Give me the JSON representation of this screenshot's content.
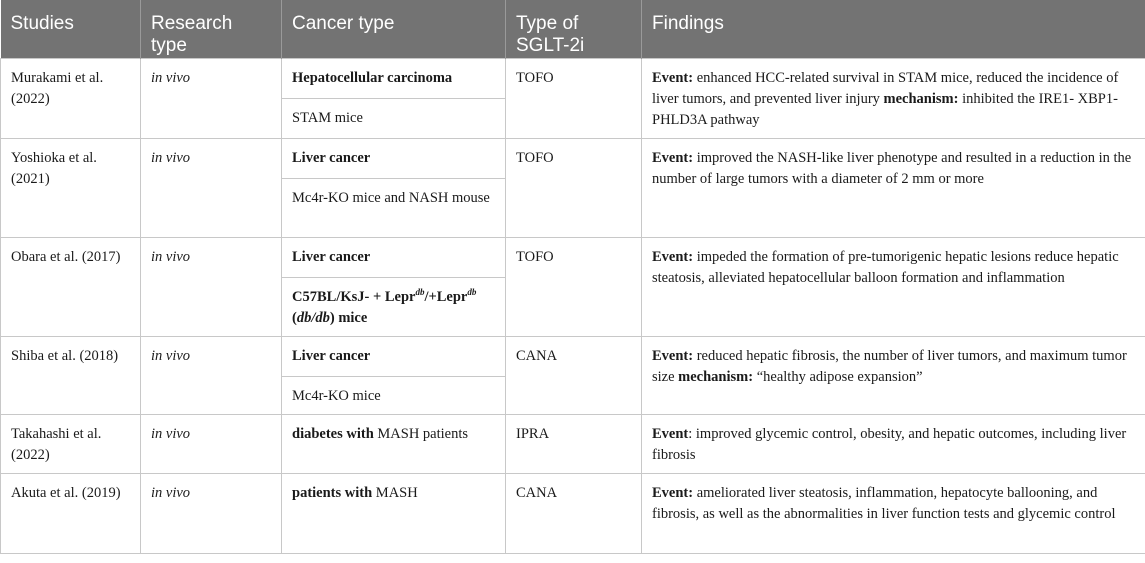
{
  "headers": [
    "Studies",
    "Research type",
    "Cancer type",
    "Type of SGLT-2i",
    "Findings"
  ],
  "rows": [
    {
      "study": "Murakami et al. (2022)",
      "type": "in vivo",
      "cancer_main": "Hepatocellular carcinoma",
      "cancer_sub": "STAM mice",
      "drug": "TOFO",
      "f1_label": "Event:",
      "f1_text": " enhanced HCC-related survival in STAM mice, reduced the incidence of liver tumors, and prevented liver injury ",
      "f2_label": "mechanism:",
      "f2_text": " inhibited the IRE1- XBP1-PHLD3A pathway"
    },
    {
      "study": "Yoshioka et al. (2021)",
      "type": "in vivo",
      "cancer_main": "Liver cancer",
      "cancer_sub": "Mc4r-KO mice and NASH mouse",
      "drug": "TOFO",
      "f1_label": "Event:",
      "f1_text": " improved the NASH-like liver phenotype and resulted in a reduction in the number of large tumors with a diameter of 2 mm or more"
    },
    {
      "study": "Obara et al. (2017)",
      "type": "in vivo",
      "cancer_main": "Liver cancer",
      "cancer_sub_a": "C57BL/KsJ- + Lepr",
      "cancer_sub_sup1": "db",
      "cancer_sub_b": "/+Lepr",
      "cancer_sub_sup2": "db",
      "cancer_sub_c": "(",
      "cancer_sub_d": "db/db",
      "cancer_sub_e": ") mice",
      "drug": "TOFO",
      "f1_label": "Event:",
      "f1_text": " impeded the formation of pre-tumorigenic hepatic lesions reduce hepatic steatosis, alleviated hepatocellular balloon formation and inflammation"
    },
    {
      "study": "Shiba et al. (2018)",
      "type": "in vivo",
      "cancer_main": "Liver cancer",
      "cancer_sub": "Mc4r-KO mice",
      "drug": "CANA",
      "f1_label": "Event:",
      "f1_text": " reduced hepatic fibrosis, the number of liver tumors, and maximum tumor size ",
      "f2_label": "mechanism:",
      "f2_text": " “healthy adipose expansion”"
    },
    {
      "study": "Takahashi et al. (2022)",
      "type": "in vivo",
      "cancer_bold": "diabetes with",
      "cancer_rest": " MASH patients",
      "drug": "IPRA",
      "f1_label": "Event",
      "f1_text": ": improved glycemic control, obesity, and hepatic outcomes, including liver fibrosis"
    },
    {
      "study": "Akuta et al. (2019)",
      "type": "in vivo",
      "cancer_bold": "patients with",
      "cancer_rest": " MASH",
      "drug": "CANA",
      "f1_label": "Event:",
      "f1_text": " ameliorated liver steatosis, inflammation, hepatocyte ballooning, and fibrosis, as well as the abnormalities in liver function tests and glycemic control"
    }
  ]
}
